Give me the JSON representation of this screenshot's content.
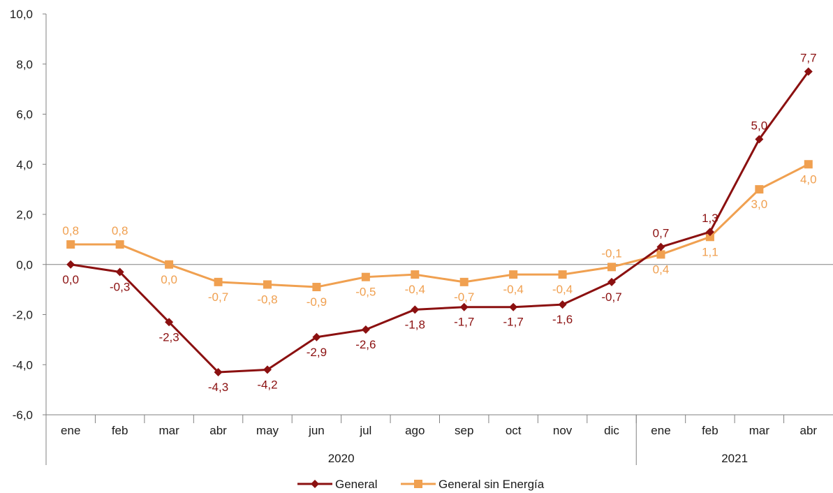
{
  "chart_data": {
    "type": "line",
    "categories": [
      "ene",
      "feb",
      "mar",
      "abr",
      "may",
      "jun",
      "jul",
      "ago",
      "sep",
      "oct",
      "nov",
      "dic",
      "ene",
      "feb",
      "mar",
      "abr"
    ],
    "groups": [
      {
        "label": "2020",
        "count": 12
      },
      {
        "label": "2021",
        "count": 4
      }
    ],
    "y_ticks": [
      "10,0",
      "8,0",
      "6,0",
      "4,0",
      "2,0",
      "0,0",
      "-2,0",
      "-4,0",
      "-6,0"
    ],
    "ylim": [
      -6,
      10
    ],
    "series": [
      {
        "name": "General",
        "color": "#8b1010",
        "marker": "diamond",
        "values": [
          0.0,
          -0.3,
          -2.3,
          -4.3,
          -4.2,
          -2.9,
          -2.6,
          -1.8,
          -1.7,
          -1.7,
          -1.6,
          -0.7,
          0.7,
          1.3,
          5.0,
          7.7
        ],
        "labels": [
          "0,0",
          "-0,3",
          "-2,3",
          "-4,3",
          "-4,2",
          "-2,9",
          "-2,6",
          "-1,8",
          "-1,7",
          "-1,7",
          "-1,6",
          "-0,7",
          "0,7",
          "1,3",
          "5,0",
          "7,7"
        ]
      },
      {
        "name": "General sin Energía",
        "color": "#f0a050",
        "marker": "square",
        "values": [
          0.8,
          0.8,
          0.0,
          -0.7,
          -0.8,
          -0.9,
          -0.5,
          -0.4,
          -0.7,
          -0.4,
          -0.4,
          -0.1,
          0.4,
          1.1,
          3.0,
          4.0
        ],
        "labels": [
          "0,8",
          "0,8",
          "0,0",
          "-0,7",
          "-0,8",
          "-0,9",
          "-0,5",
          "-0,4",
          "-0,7",
          "-0,4",
          "-0,4",
          "-0,1",
          "0,4",
          "1,1",
          "3,0",
          "4,0"
        ]
      }
    ],
    "grid": false,
    "legend_position": "bottom-center",
    "title": "",
    "xlabel": "",
    "ylabel": ""
  }
}
